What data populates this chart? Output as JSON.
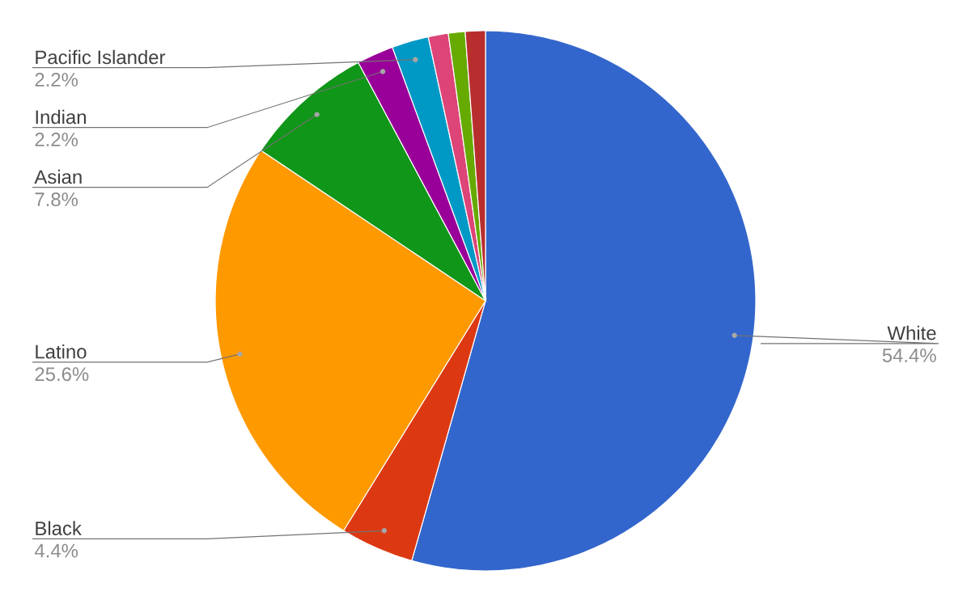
{
  "chart_data": {
    "type": "pie",
    "categories": [
      "White",
      "Black",
      "Latino",
      "Asian",
      "Indian",
      "Pacific Islander",
      null,
      null,
      null
    ],
    "values": [
      54.4,
      4.4,
      25.6,
      7.8,
      2.2,
      2.2,
      1.2,
      1.0,
      1.2
    ],
    "colors": [
      "#3366cc",
      "#dc3912",
      "#ff9900",
      "#109618",
      "#990099",
      "#0099c6",
      "#dd4477",
      "#66aa00",
      "#b82e2e"
    ],
    "value_labels": [
      "54.4%",
      "4.4%",
      "25.6%",
      "7.8%",
      "2.2%",
      "2.2%",
      null,
      null,
      null
    ]
  }
}
